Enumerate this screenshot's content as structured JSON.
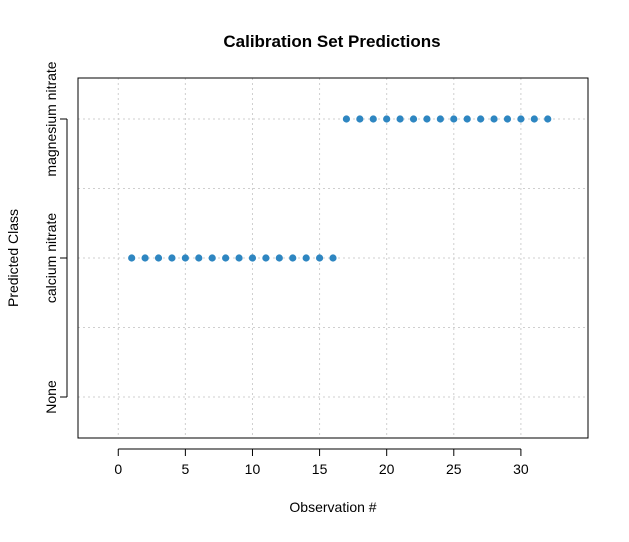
{
  "chart_data": {
    "type": "scatter",
    "title": "Calibration Set Predictions",
    "xlabel": "Observation #",
    "ylabel": "Predicted Class",
    "xlim": [
      -3,
      35
    ],
    "x_ticks": [
      0,
      5,
      10,
      15,
      20,
      25,
      30
    ],
    "y_categories": [
      "None",
      "calcium nitrate",
      "magnesium nitrate"
    ],
    "grid": true,
    "point_color": "#2E86C1",
    "x": [
      1,
      2,
      3,
      4,
      5,
      6,
      7,
      8,
      9,
      10,
      11,
      12,
      13,
      14,
      15,
      16,
      17,
      18,
      19,
      20,
      21,
      22,
      23,
      24,
      25,
      26,
      27,
      28,
      29,
      30,
      31,
      32
    ],
    "y": [
      "calcium nitrate",
      "calcium nitrate",
      "calcium nitrate",
      "calcium nitrate",
      "calcium nitrate",
      "calcium nitrate",
      "calcium nitrate",
      "calcium nitrate",
      "calcium nitrate",
      "calcium nitrate",
      "calcium nitrate",
      "calcium nitrate",
      "calcium nitrate",
      "calcium nitrate",
      "calcium nitrate",
      "calcium nitrate",
      "magnesium nitrate",
      "magnesium nitrate",
      "magnesium nitrate",
      "magnesium nitrate",
      "magnesium nitrate",
      "magnesium nitrate",
      "magnesium nitrate",
      "magnesium nitrate",
      "magnesium nitrate",
      "magnesium nitrate",
      "magnesium nitrate",
      "magnesium nitrate",
      "magnesium nitrate",
      "magnesium nitrate",
      "magnesium nitrate",
      "magnesium nitrate"
    ]
  }
}
